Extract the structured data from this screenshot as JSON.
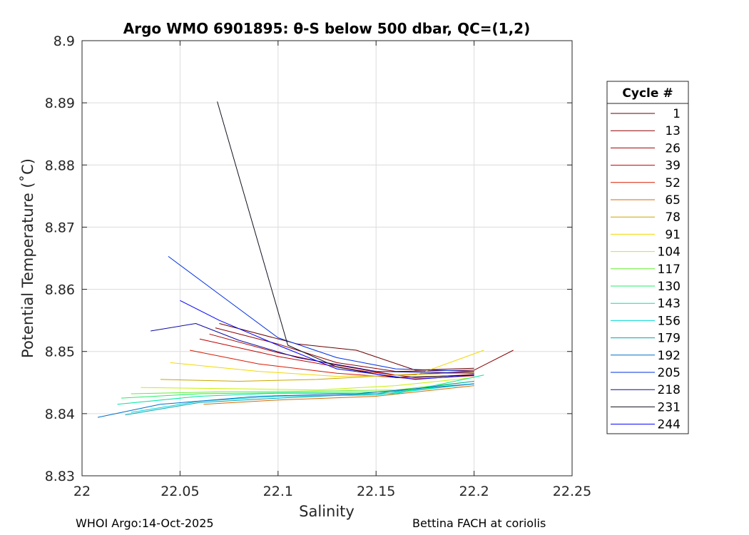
{
  "chart_data": {
    "type": "line",
    "title": "Argo WMO 6901895: θ-S below 500 dbar,  QC=(1,2)",
    "xlabel": "Salinity",
    "ylabel": "Potential Temperature (˚C)",
    "xlim": [
      22,
      22.25
    ],
    "ylim": [
      8.83,
      8.9
    ],
    "xticks": [
      22,
      22.05,
      22.1,
      22.15,
      22.2,
      22.25
    ],
    "xtick_labels": [
      "22",
      "22.05",
      "22.1",
      "22.15",
      "22.2",
      "22.25"
    ],
    "yticks": [
      8.83,
      8.84,
      8.85,
      8.86,
      8.87,
      8.88,
      8.89,
      8.9
    ],
    "ytick_labels": [
      "8.83",
      "8.84",
      "8.85",
      "8.86",
      "8.87",
      "8.88",
      "8.89",
      "8.9"
    ],
    "grid": true,
    "legend_position": "right",
    "legend_title": "Cycle #",
    "series": [
      {
        "name": "1",
        "color": "#6a0000",
        "points": [
          [
            22.07,
            8.8545
          ],
          [
            22.11,
            8.8512
          ],
          [
            22.14,
            8.8502
          ],
          [
            22.17,
            8.847
          ],
          [
            22.2,
            8.8473
          ]
        ]
      },
      {
        "name": "13",
        "color": "#8a0000",
        "points": [
          [
            22.068,
            8.8538
          ],
          [
            22.1,
            8.8512
          ],
          [
            22.13,
            8.8482
          ],
          [
            22.16,
            8.8468
          ],
          [
            22.2,
            8.847
          ],
          [
            22.22,
            8.8502
          ]
        ]
      },
      {
        "name": "26",
        "color": "#a50000",
        "points": [
          [
            22.065,
            8.8528
          ],
          [
            22.1,
            8.8498
          ],
          [
            22.13,
            8.8478
          ],
          [
            22.16,
            8.8462
          ],
          [
            22.2,
            8.8468
          ]
        ]
      },
      {
        "name": "39",
        "color": "#c00000",
        "points": [
          [
            22.06,
            8.852
          ],
          [
            22.1,
            8.8492
          ],
          [
            22.14,
            8.847
          ],
          [
            22.17,
            8.8458
          ],
          [
            22.2,
            8.8463
          ]
        ]
      },
      {
        "name": "52",
        "color": "#d81a00",
        "points": [
          [
            22.055,
            8.8502
          ],
          [
            22.09,
            8.848
          ],
          [
            22.13,
            8.8465
          ],
          [
            22.17,
            8.8456
          ],
          [
            22.2,
            8.8461
          ]
        ]
      },
      {
        "name": "65",
        "color": "#d96a00",
        "points": [
          [
            22.062,
            8.8415
          ],
          [
            22.1,
            8.8422
          ],
          [
            22.15,
            8.8428
          ],
          [
            22.2,
            8.8445
          ]
        ]
      },
      {
        "name": "78",
        "color": "#c9a600",
        "points": [
          [
            22.04,
            8.8455
          ],
          [
            22.08,
            8.8452
          ],
          [
            22.12,
            8.8455
          ],
          [
            22.16,
            8.8462
          ],
          [
            22.2,
            8.8466
          ]
        ]
      },
      {
        "name": "91",
        "color": "#f2d800",
        "points": [
          [
            22.045,
            8.8482
          ],
          [
            22.09,
            8.8468
          ],
          [
            22.13,
            8.846
          ],
          [
            22.17,
            8.8462
          ],
          [
            22.205,
            8.8502
          ]
        ]
      },
      {
        "name": "104",
        "color": "#c8f000",
        "points": [
          [
            22.03,
            8.8442
          ],
          [
            22.08,
            8.844
          ],
          [
            22.12,
            8.8438
          ],
          [
            22.16,
            8.8445
          ],
          [
            22.2,
            8.8458
          ]
        ]
      },
      {
        "name": "117",
        "color": "#66ee33",
        "points": [
          [
            22.025,
            8.8432
          ],
          [
            22.07,
            8.8435
          ],
          [
            22.11,
            8.8436
          ],
          [
            22.16,
            8.8438
          ],
          [
            22.2,
            8.8452
          ]
        ]
      },
      {
        "name": "130",
        "color": "#22ee66",
        "points": [
          [
            22.02,
            8.8425
          ],
          [
            22.06,
            8.8432
          ],
          [
            22.11,
            8.8434
          ],
          [
            22.16,
            8.8435
          ],
          [
            22.2,
            8.8448
          ]
        ]
      },
      {
        "name": "143",
        "color": "#00e6a0",
        "points": [
          [
            22.018,
            8.8415
          ],
          [
            22.06,
            8.8428
          ],
          [
            22.1,
            8.8433
          ],
          [
            22.16,
            8.8432
          ],
          [
            22.205,
            8.8462
          ]
        ]
      },
      {
        "name": "156",
        "color": "#00d8d8",
        "points": [
          [
            22.025,
            8.8402
          ],
          [
            22.06,
            8.842
          ],
          [
            22.1,
            8.8428
          ],
          [
            22.15,
            8.843
          ],
          [
            22.2,
            8.8448
          ]
        ]
      },
      {
        "name": "179",
        "color": "#00a6b3",
        "points": [
          [
            22.022,
            8.8398
          ],
          [
            22.06,
            8.8418
          ],
          [
            22.1,
            8.8425
          ],
          [
            22.15,
            8.8432
          ],
          [
            22.2,
            8.8452
          ]
        ]
      },
      {
        "name": "192",
        "color": "#0070c8",
        "points": [
          [
            22.008,
            8.8394
          ],
          [
            22.04,
            8.8415
          ],
          [
            22.09,
            8.8428
          ],
          [
            22.14,
            8.8432
          ],
          [
            22.2,
            8.8448
          ]
        ]
      },
      {
        "name": "205",
        "color": "#0030e0",
        "points": [
          [
            22.044,
            8.8653
          ],
          [
            22.07,
            8.8592
          ],
          [
            22.1,
            8.8522
          ],
          [
            22.13,
            8.849
          ],
          [
            22.16,
            8.8472
          ],
          [
            22.2,
            8.8468
          ]
        ]
      },
      {
        "name": "218",
        "color": "#0a0aa0",
        "points": [
          [
            22.035,
            8.8533
          ],
          [
            22.058,
            8.8545
          ],
          [
            22.08,
            8.8518
          ],
          [
            22.11,
            8.849
          ],
          [
            22.15,
            8.8468
          ],
          [
            22.2,
            8.8465
          ]
        ]
      },
      {
        "name": "231",
        "color": "#101020",
        "points": [
          [
            22.069,
            8.8902
          ],
          [
            22.105,
            8.851
          ],
          [
            22.13,
            8.8475
          ],
          [
            22.16,
            8.8458
          ],
          [
            22.2,
            8.8462
          ]
        ]
      },
      {
        "name": "244",
        "color": "#0000ff",
        "points": [
          [
            22.05,
            8.8582
          ],
          [
            22.07,
            8.855
          ],
          [
            22.1,
            8.851
          ],
          [
            22.13,
            8.8472
          ],
          [
            22.17,
            8.8455
          ],
          [
            22.2,
            8.8462
          ]
        ]
      }
    ]
  },
  "footer": {
    "left": "WHOI Argo:14-Oct-2025",
    "right": "Bettina FACH at coriolis"
  }
}
